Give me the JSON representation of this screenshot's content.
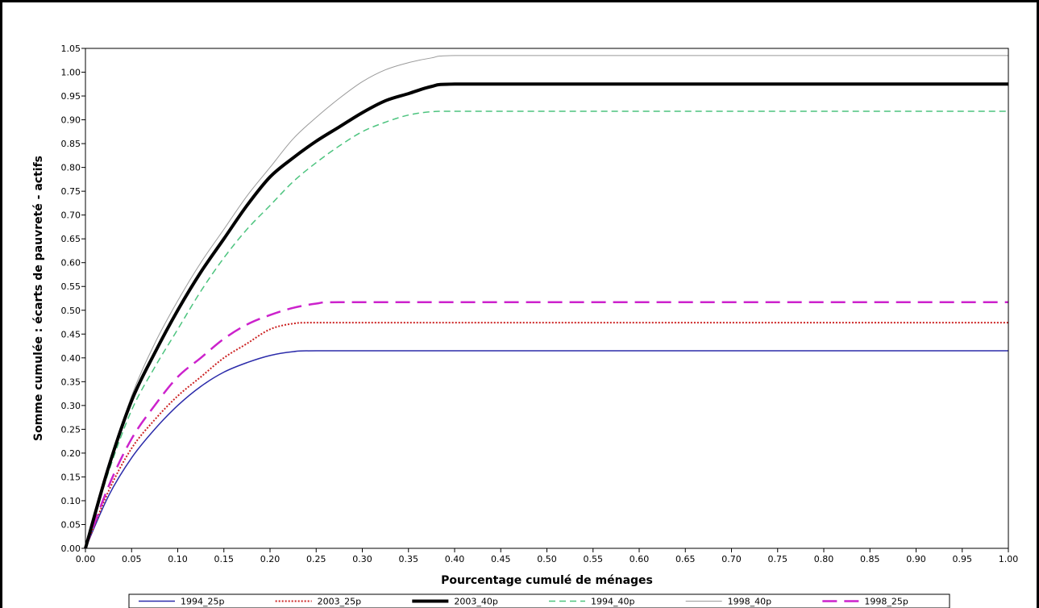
{
  "chart_data": {
    "type": "line",
    "title": "",
    "xlabel": "Pourcentage cumulé de ménages",
    "ylabel": "Somme cumulée : écarts de pauvreté - actifs",
    "xlim": [
      0,
      1
    ],
    "ylim": [
      0,
      1.05
    ],
    "x_ticks": [
      "0.00",
      "0.05",
      "0.10",
      "0.15",
      "0.20",
      "0.25",
      "0.30",
      "0.35",
      "0.40",
      "0.45",
      "0.50",
      "0.55",
      "0.60",
      "0.65",
      "0.70",
      "0.75",
      "0.80",
      "0.85",
      "0.90",
      "0.95",
      "1.00"
    ],
    "y_ticks": [
      "0.00",
      "0.05",
      "0.10",
      "0.15",
      "0.20",
      "0.25",
      "0.30",
      "0.35",
      "0.40",
      "0.45",
      "0.50",
      "0.55",
      "0.60",
      "0.65",
      "0.70",
      "0.75",
      "0.80",
      "0.85",
      "0.90",
      "0.95",
      "1.00",
      "1.05"
    ],
    "grid": false,
    "legend_position": "bottom",
    "series": [
      {
        "name": "1994_25p",
        "color": "#2b2baa",
        "style": "solid-thin",
        "x": [
          0,
          0.025,
          0.05,
          0.075,
          0.1,
          0.125,
          0.15,
          0.175,
          0.2,
          0.225,
          0.25,
          1.0
        ],
        "y": [
          0,
          0.11,
          0.19,
          0.25,
          0.3,
          0.34,
          0.37,
          0.39,
          0.405,
          0.413,
          0.415,
          0.415
        ]
      },
      {
        "name": "2003_25p",
        "color": "#cc2222",
        "style": "dotted",
        "x": [
          0,
          0.025,
          0.05,
          0.075,
          0.1,
          0.125,
          0.15,
          0.175,
          0.2,
          0.225,
          0.25,
          1.0
        ],
        "y": [
          0,
          0.12,
          0.21,
          0.27,
          0.32,
          0.36,
          0.4,
          0.43,
          0.46,
          0.472,
          0.474,
          0.474
        ]
      },
      {
        "name": "2003_40p",
        "color": "#000000",
        "style": "solid-thick",
        "x": [
          0,
          0.025,
          0.05,
          0.075,
          0.1,
          0.125,
          0.15,
          0.175,
          0.2,
          0.225,
          0.25,
          0.275,
          0.3,
          0.325,
          0.35,
          0.375,
          0.4,
          1.0
        ],
        "y": [
          0,
          0.17,
          0.31,
          0.41,
          0.5,
          0.58,
          0.65,
          0.72,
          0.78,
          0.82,
          0.855,
          0.885,
          0.915,
          0.94,
          0.955,
          0.97,
          0.975,
          0.975
        ]
      },
      {
        "name": "1994_40p",
        "color": "#4dc47f",
        "style": "dashed",
        "x": [
          0,
          0.025,
          0.05,
          0.075,
          0.1,
          0.125,
          0.15,
          0.175,
          0.2,
          0.225,
          0.25,
          0.275,
          0.3,
          0.325,
          0.35,
          0.375,
          0.4,
          1.0
        ],
        "y": [
          0,
          0.16,
          0.29,
          0.38,
          0.46,
          0.54,
          0.61,
          0.67,
          0.72,
          0.77,
          0.81,
          0.845,
          0.875,
          0.895,
          0.91,
          0.917,
          0.918,
          0.918
        ]
      },
      {
        "name": "1998_40p",
        "color": "#9a9a9a",
        "style": "solid-hairline",
        "x": [
          0,
          0.025,
          0.05,
          0.075,
          0.1,
          0.125,
          0.15,
          0.175,
          0.2,
          0.225,
          0.25,
          0.275,
          0.3,
          0.325,
          0.35,
          0.375,
          0.4,
          1.0
        ],
        "y": [
          0,
          0.17,
          0.32,
          0.43,
          0.52,
          0.6,
          0.67,
          0.74,
          0.8,
          0.86,
          0.905,
          0.945,
          0.98,
          1.005,
          1.02,
          1.03,
          1.035,
          1.035
        ]
      },
      {
        "name": "1998_25p",
        "color": "#cc22cc",
        "style": "long-dash",
        "x": [
          0,
          0.025,
          0.05,
          0.075,
          0.1,
          0.125,
          0.15,
          0.175,
          0.2,
          0.225,
          0.25,
          0.275,
          1.0
        ],
        "y": [
          0,
          0.13,
          0.23,
          0.3,
          0.36,
          0.4,
          0.44,
          0.47,
          0.49,
          0.505,
          0.514,
          0.517,
          0.517
        ]
      }
    ]
  }
}
